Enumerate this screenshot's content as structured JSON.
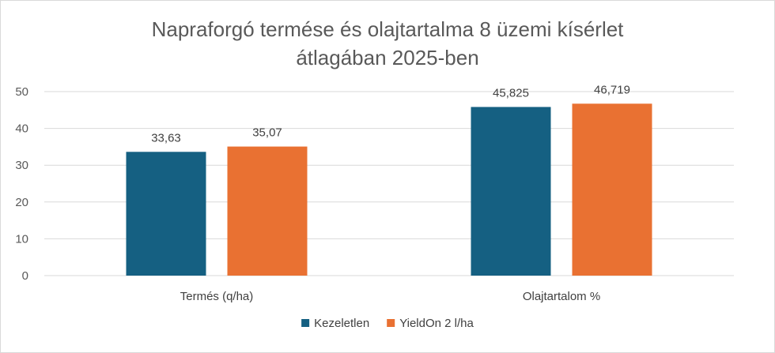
{
  "chart_data": {
    "type": "bar",
    "title_lines": [
      "Napraforgó termése és olajtartalma 8 üzemi kísérlet",
      "átlagában 2025-ben"
    ],
    "categories": [
      "Termés (q/ha)",
      "Olajtartalom %"
    ],
    "series": [
      {
        "name": "Kezeletlen",
        "color": "#156082",
        "values": [
          33.63,
          45.825
        ],
        "labels": [
          "33,63",
          "45,825"
        ]
      },
      {
        "name": "YieldOn 2 l/ha",
        "color": "#E97132",
        "values": [
          35.07,
          46.719
        ],
        "labels": [
          "35,07",
          "46,719"
        ]
      }
    ],
    "ylim": [
      0,
      50
    ],
    "yticks": [
      0,
      10,
      20,
      30,
      40,
      50
    ],
    "grid": true,
    "legend_position": "bottom"
  }
}
